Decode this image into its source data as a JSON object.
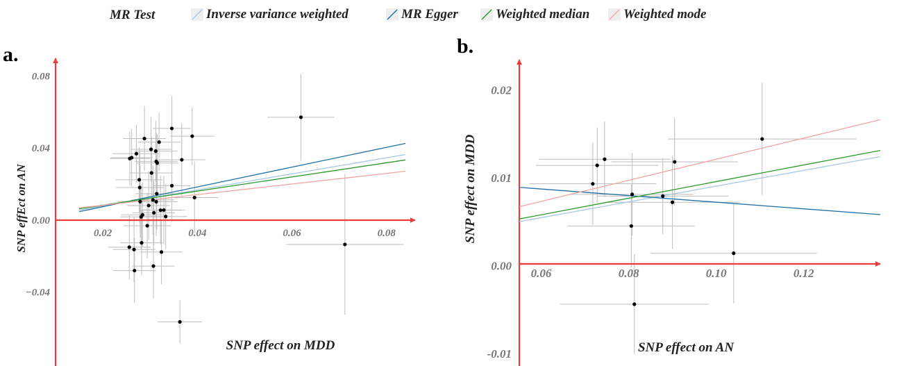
{
  "legend": {
    "title": "MR Test",
    "items": [
      {
        "label": "Inverse variance weighted",
        "color": "#a6c8e4"
      },
      {
        "label": "MR Egger",
        "color": "#1f6fa8"
      },
      {
        "label": "Weighted median",
        "color": "#2a9a2a"
      },
      {
        "label": "Weighted mode",
        "color": "#f2a3a3"
      }
    ]
  },
  "panels": {
    "a": {
      "label": "a."
    },
    "b": {
      "label": "b."
    }
  },
  "chart_data": [
    {
      "type": "scatter",
      "panel": "a.",
      "xlabel": "SNP effect on MDD",
      "ylabel": "SNP effEct on AN",
      "xlim": [
        0.01,
        0.084
      ],
      "ylim": [
        -0.078,
        0.082
      ],
      "x_ticks": [
        0.02,
        0.04,
        0.06,
        0.08
      ],
      "x_tick_labels": [
        "0.02",
        "0.04",
        "0.06",
        "0.08"
      ],
      "y_ticks": [
        0.08,
        0.04,
        0.0,
        -0.04
      ],
      "y_tick_labels": [
        "0.08",
        "0.04",
        "0.00",
        "−0.04"
      ],
      "points": [
        {
          "x": 0.0619,
          "y": 0.057,
          "xerr": 0.0071,
          "yerr": 0.024
        },
        {
          "x": 0.0712,
          "y": -0.0136,
          "xerr": 0.0124,
          "yerr": 0.039
        },
        {
          "x": 0.0363,
          "y": -0.0566,
          "xerr": 0.0047,
          "yerr": 0.012
        },
        {
          "x": 0.0346,
          "y": 0.0508,
          "xerr": 0.004,
          "yerr": 0.018
        },
        {
          "x": 0.0389,
          "y": 0.0465,
          "xerr": 0.0047,
          "yerr": 0.016
        },
        {
          "x": 0.0288,
          "y": 0.0452,
          "xerr": 0.0045,
          "yerr": 0.018
        },
        {
          "x": 0.0319,
          "y": 0.0432,
          "xerr": 0.0045,
          "yerr": 0.016
        },
        {
          "x": 0.0302,
          "y": 0.0392,
          "xerr": 0.0043,
          "yerr": 0.018
        },
        {
          "x": 0.0312,
          "y": 0.0382,
          "xerr": 0.0045,
          "yerr": 0.017
        },
        {
          "x": 0.0271,
          "y": 0.0368,
          "xerr": 0.005,
          "yerr": 0.016
        },
        {
          "x": 0.0261,
          "y": 0.0346,
          "xerr": 0.0045,
          "yerr": 0.016
        },
        {
          "x": 0.0257,
          "y": 0.0341,
          "xerr": 0.0042,
          "yerr": 0.015
        },
        {
          "x": 0.0313,
          "y": 0.0325,
          "xerr": 0.0045,
          "yerr": 0.016
        },
        {
          "x": 0.0315,
          "y": 0.0316,
          "xerr": 0.0045,
          "yerr": 0.016
        },
        {
          "x": 0.0367,
          "y": 0.0334,
          "xerr": 0.005,
          "yerr": 0.02
        },
        {
          "x": 0.0303,
          "y": 0.0261,
          "xerr": 0.0045,
          "yerr": 0.02
        },
        {
          "x": 0.0277,
          "y": 0.0223,
          "xerr": 0.005,
          "yerr": 0.018
        },
        {
          "x": 0.0278,
          "y": 0.018,
          "xerr": 0.005,
          "yerr": 0.02
        },
        {
          "x": 0.0346,
          "y": 0.019,
          "xerr": 0.004,
          "yerr": 0.02
        },
        {
          "x": 0.0314,
          "y": 0.0146,
          "xerr": 0.0045,
          "yerr": 0.02
        },
        {
          "x": 0.0394,
          "y": 0.0124,
          "xerr": 0.005,
          "yerr": 0.02
        },
        {
          "x": 0.0306,
          "y": 0.0111,
          "xerr": 0.0045,
          "yerr": 0.019
        },
        {
          "x": 0.0313,
          "y": 0.0101,
          "xerr": 0.0045,
          "yerr": 0.019
        },
        {
          "x": 0.0279,
          "y": 0.0102,
          "xerr": 0.0048,
          "yerr": 0.02
        },
        {
          "x": 0.0297,
          "y": 0.008,
          "xerr": 0.0045,
          "yerr": 0.019
        },
        {
          "x": 0.0322,
          "y": 0.0054,
          "xerr": 0.0045,
          "yerr": 0.019
        },
        {
          "x": 0.0329,
          "y": 0.0055,
          "xerr": 0.0045,
          "yerr": 0.019
        },
        {
          "x": 0.0308,
          "y": 0.004,
          "xerr": 0.0045,
          "yerr": 0.018
        },
        {
          "x": 0.0284,
          "y": 0.0028,
          "xerr": 0.0045,
          "yerr": 0.018
        },
        {
          "x": 0.0333,
          "y": 0.0019,
          "xerr": 0.0045,
          "yerr": 0.018
        },
        {
          "x": 0.0281,
          "y": 0.0017,
          "xerr": 0.0045,
          "yerr": 0.018
        },
        {
          "x": 0.0294,
          "y": -0.0032,
          "xerr": 0.005,
          "yerr": 0.018
        },
        {
          "x": 0.0256,
          "y": -0.0151,
          "xerr": 0.0045,
          "yerr": 0.018
        },
        {
          "x": 0.0266,
          "y": -0.0164,
          "xerr": 0.0045,
          "yerr": 0.018
        },
        {
          "x": 0.0282,
          "y": -0.0127,
          "xerr": 0.0045,
          "yerr": 0.018
        },
        {
          "x": 0.0324,
          "y": -0.0178,
          "xerr": 0.0045,
          "yerr": 0.018
        },
        {
          "x": 0.0307,
          "y": -0.0256,
          "xerr": 0.0045,
          "yerr": 0.018
        },
        {
          "x": 0.0267,
          "y": -0.0281,
          "xerr": 0.0045,
          "yerr": 0.018
        }
      ],
      "lines": [
        {
          "name": "Inverse variance weighted",
          "color": "#a6c8e4",
          "x": [
            0.015,
            0.084
          ],
          "y": [
            0.0055,
            0.0363
          ]
        },
        {
          "name": "MR Egger",
          "color": "#1f6fa8",
          "x": [
            0.015,
            0.084
          ],
          "y": [
            0.0046,
            0.0425
          ]
        },
        {
          "name": "Weighted median",
          "color": "#2a9a2a",
          "x": [
            0.015,
            0.084
          ],
          "y": [
            0.0062,
            0.0333
          ]
        },
        {
          "name": "Weighted mode",
          "color": "#f2a3a3",
          "x": [
            0.015,
            0.084
          ],
          "y": [
            0.0067,
            0.027
          ]
        }
      ]
    },
    {
      "type": "scatter",
      "panel": "b.",
      "xlabel": "SNP effect on AN",
      "ylabel": "SNP effect on MDD",
      "xlim": [
        0.055,
        0.1375
      ],
      "ylim": [
        -0.0108,
        0.022
      ],
      "x_ticks": [
        0.06,
        0.08,
        0.1,
        0.12
      ],
      "x_tick_labels": [
        "0.06",
        "0.08",
        "0.10",
        "0.12"
      ],
      "y_ticks": [
        0.02,
        0.01,
        0.0,
        -0.01
      ],
      "y_tick_labels": [
        "0.02",
        "0.01",
        "0.00",
        "-0.01"
      ],
      "points": [
        {
          "x": 0.1105,
          "y": 0.0144,
          "xerr": 0.0215,
          "yerr": 0.0064
        },
        {
          "x": 0.0745,
          "y": 0.0121,
          "xerr": 0.015,
          "yerr": 0.0043
        },
        {
          "x": 0.0728,
          "y": 0.0114,
          "xerr": 0.014,
          "yerr": 0.0043
        },
        {
          "x": 0.0905,
          "y": 0.0118,
          "xerr": 0.0145,
          "yerr": 0.005
        },
        {
          "x": 0.0718,
          "y": 0.0093,
          "xerr": 0.0145,
          "yerr": 0.0047
        },
        {
          "x": 0.0808,
          "y": 0.0081,
          "xerr": 0.014,
          "yerr": 0.0047
        },
        {
          "x": 0.0878,
          "y": 0.0079,
          "xerr": 0.015,
          "yerr": 0.0043
        },
        {
          "x": 0.09,
          "y": 0.0072,
          "xerr": 0.0155,
          "yerr": 0.0053
        },
        {
          "x": 0.0806,
          "y": 0.0045,
          "xerr": 0.0145,
          "yerr": 0.0047
        },
        {
          "x": 0.104,
          "y": 0.0014,
          "xerr": 0.019,
          "yerr": 0.0057
        },
        {
          "x": 0.0813,
          "y": -0.0044,
          "xerr": 0.017,
          "yerr": 0.0057
        }
      ],
      "lines": [
        {
          "name": "Inverse variance weighted",
          "color": "#a6c8e4",
          "x": [
            0.055,
            0.1375
          ],
          "y": [
            0.005,
            0.0124
          ]
        },
        {
          "name": "MR Egger",
          "color": "#1f6fa8",
          "x": [
            0.055,
            0.1375
          ],
          "y": [
            0.0089,
            0.0058
          ]
        },
        {
          "name": "Weighted median",
          "color": "#2a9a2a",
          "x": [
            0.055,
            0.1375
          ],
          "y": [
            0.0053,
            0.0131
          ]
        },
        {
          "name": "Weighted mode",
          "color": "#f2a3a3",
          "x": [
            0.055,
            0.1375
          ],
          "y": [
            0.0067,
            0.0166
          ]
        }
      ]
    }
  ]
}
